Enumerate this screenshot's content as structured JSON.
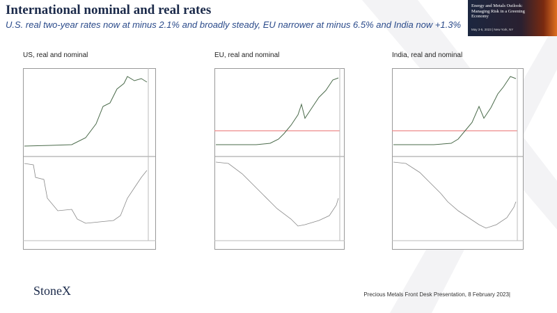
{
  "header": {
    "title": "International nominal and real rates",
    "subtitle": "U.S. real two-year rates now at minus 2.1% and broadly steady, EU narrower at minus 6.5% and India now +1.3%"
  },
  "banner": {
    "title": "Energy and Metals Outlook: Managing Risk in a Greening Economy",
    "date": "May 3-5, 2023 | New York, NY"
  },
  "panels": [
    {
      "title": "US, real and nominal"
    },
    {
      "title": "EU, real and nominal"
    },
    {
      "title": "India, real and nominal"
    }
  ],
  "footer": {
    "logo": "StoneX",
    "caption": "Precious Metals Front Desk Presentation, 8 February 2023|"
  }
}
